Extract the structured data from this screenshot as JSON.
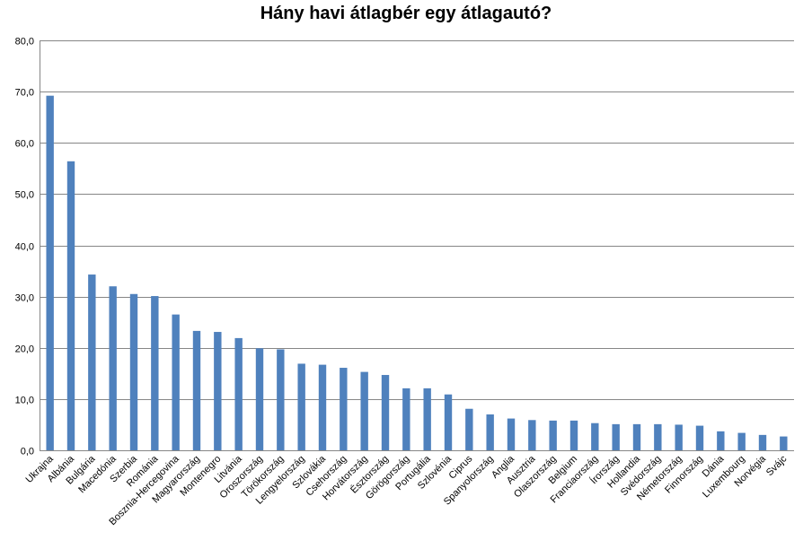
{
  "chart_data": {
    "type": "bar",
    "title": "Hány havi átlagbér egy átlagautó?",
    "xlabel": "",
    "ylabel": "",
    "ylim": [
      0,
      80
    ],
    "yticks": [
      "0,0",
      "10,0",
      "20,0",
      "30,0",
      "40,0",
      "50,0",
      "60,0",
      "70,0",
      "80,0"
    ],
    "grid": true,
    "legend": "none",
    "bar_color": "#4F81BD",
    "grid_color": "#868686",
    "categories": [
      "Ukrajna",
      "Albánia",
      "Bulgária",
      "Macedónia",
      "Szerbia",
      "Románia",
      "Bosznia-Hercegovina",
      "Magyarország",
      "Montenegro",
      "Litvánia",
      "Oroszország",
      "Törökország",
      "Lengyelország",
      "Szlovákia",
      "Csehország",
      "Horvátország",
      "Észtország",
      "Görögország",
      "Portugália",
      "Szlovénia",
      "Ciprus",
      "Spanyolország",
      "Anglia",
      "Ausztria",
      "Olaszország",
      "Belgium",
      "Franciaország",
      "Írország",
      "Hollandia",
      "Svédország",
      "Németország",
      "Finnország",
      "Dánia",
      "Luxembourg",
      "Norvégia",
      "Svájc"
    ],
    "values": [
      69.2,
      56.4,
      34.3,
      32.0,
      30.5,
      30.1,
      26.5,
      23.3,
      23.1,
      21.9,
      19.9,
      19.7,
      16.9,
      16.7,
      16.1,
      15.3,
      14.7,
      12.1,
      12.1,
      10.9,
      8.1,
      7.0,
      6.2,
      5.9,
      5.8,
      5.8,
      5.3,
      5.1,
      5.1,
      5.1,
      5.0,
      4.8,
      3.7,
      3.4,
      3.0,
      2.7
    ]
  }
}
